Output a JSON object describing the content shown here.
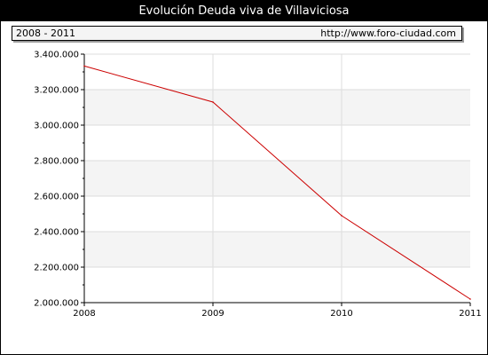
{
  "header": {
    "title": "Evolución Deuda viva de Villaviciosa",
    "range": "2008 - 2011",
    "url": "http://www.foro-ciudad.com"
  },
  "colors": {
    "line": "#cc0000",
    "band": "#f4f4f4",
    "grid": "#dddddd",
    "header_bg": "#000000"
  },
  "chart_data": {
    "type": "line",
    "title": "Evolución Deuda viva de Villaviciosa",
    "xlabel": "",
    "ylabel": "",
    "categories": [
      "2008",
      "2009",
      "2010",
      "2011"
    ],
    "series": [
      {
        "values": [
          3333000,
          3130000,
          2490000,
          2020000
        ]
      }
    ],
    "ylim": [
      2000000,
      3400000
    ],
    "yticks": [
      2000000,
      2200000,
      2400000,
      2600000,
      2800000,
      3000000,
      3200000,
      3400000
    ],
    "ytick_labels": [
      "2.000.000",
      "2.200.000",
      "2.400.000",
      "2.600.000",
      "2.800.000",
      "3.000.000",
      "3.200.000",
      "3.400.000"
    ],
    "grid": true,
    "legend": "none"
  }
}
